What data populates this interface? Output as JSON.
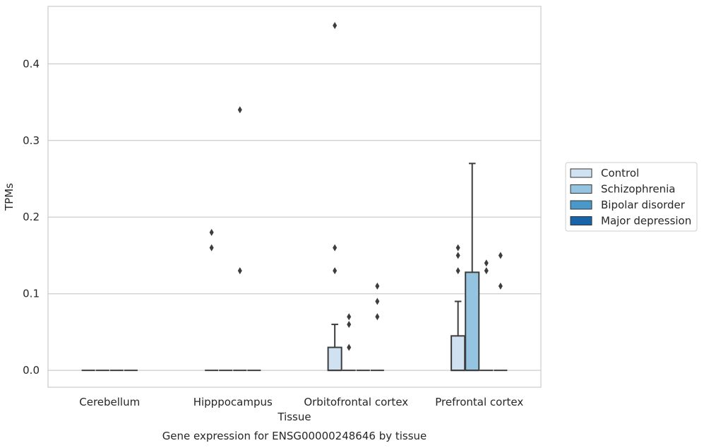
{
  "chart_data": {
    "type": "box",
    "caption": "Gene expression for ENSG00000248646 by tissue",
    "xlabel": "Tissue",
    "ylabel": "TPMs",
    "ylim": [
      -0.022,
      0.475
    ],
    "yticks": [
      "0.0",
      "0.1",
      "0.2",
      "0.3",
      "0.4"
    ],
    "grid": "horizontal",
    "legend_position": "right",
    "categories": [
      "Cerebellum",
      "Hipppocampus",
      "Orbitofrontal cortex",
      "Prefrontal cortex"
    ],
    "series": [
      {
        "name": "Control",
        "color": "#d0e1f2",
        "boxes": [
          {
            "q1": 0,
            "median": 0,
            "q3": 0,
            "whisker_low": 0,
            "whisker_high": 0,
            "outliers": []
          },
          {
            "q1": 0,
            "median": 0,
            "q3": 0,
            "whisker_low": 0,
            "whisker_high": 0,
            "outliers": [
              0.16,
              0.18
            ]
          },
          {
            "q1": 0,
            "median": 0,
            "q3": 0.03,
            "whisker_low": 0,
            "whisker_high": 0.06,
            "outliers": [
              0.13,
              0.16,
              0.45
            ]
          },
          {
            "q1": 0,
            "median": 0,
            "q3": 0.045,
            "whisker_low": 0,
            "whisker_high": 0.09,
            "outliers": [
              0.13,
              0.15,
              0.16
            ]
          }
        ]
      },
      {
        "name": "Schizophrenia",
        "color": "#94c4df",
        "boxes": [
          {
            "q1": 0,
            "median": 0,
            "q3": 0,
            "whisker_low": 0,
            "whisker_high": 0,
            "outliers": []
          },
          {
            "q1": 0,
            "median": 0,
            "q3": 0,
            "whisker_low": 0,
            "whisker_high": 0,
            "outliers": []
          },
          {
            "q1": 0,
            "median": 0,
            "q3": 0,
            "whisker_low": 0,
            "whisker_high": 0,
            "outliers": [
              0.03,
              0.06,
              0.07
            ]
          },
          {
            "q1": 0,
            "median": 0,
            "q3": 0.128,
            "whisker_low": 0,
            "whisker_high": 0.27,
            "outliers": []
          }
        ]
      },
      {
        "name": "Bipolar disorder",
        "color": "#4a98c9",
        "boxes": [
          {
            "q1": 0,
            "median": 0,
            "q3": 0,
            "whisker_low": 0,
            "whisker_high": 0,
            "outliers": []
          },
          {
            "q1": 0,
            "median": 0,
            "q3": 0,
            "whisker_low": 0,
            "whisker_high": 0,
            "outliers": [
              0.13,
              0.34
            ]
          },
          {
            "q1": 0,
            "median": 0,
            "q3": 0,
            "whisker_low": 0,
            "whisker_high": 0,
            "outliers": []
          },
          {
            "q1": 0,
            "median": 0,
            "q3": 0,
            "whisker_low": 0,
            "whisker_high": 0,
            "outliers": [
              0.13,
              0.14
            ]
          }
        ]
      },
      {
        "name": "Major depression",
        "color": "#1764ab",
        "boxes": [
          {
            "q1": 0,
            "median": 0,
            "q3": 0,
            "whisker_low": 0,
            "whisker_high": 0,
            "outliers": []
          },
          {
            "q1": 0,
            "median": 0,
            "q3": 0,
            "whisker_low": 0,
            "whisker_high": 0,
            "outliers": []
          },
          {
            "q1": 0,
            "median": 0,
            "q3": 0,
            "whisker_low": 0,
            "whisker_high": 0,
            "outliers": [
              0.07,
              0.09,
              0.11
            ]
          },
          {
            "q1": 0,
            "median": 0,
            "q3": 0,
            "whisker_low": 0,
            "whisker_high": 0,
            "outliers": [
              0.11,
              0.15
            ]
          }
        ]
      }
    ]
  }
}
